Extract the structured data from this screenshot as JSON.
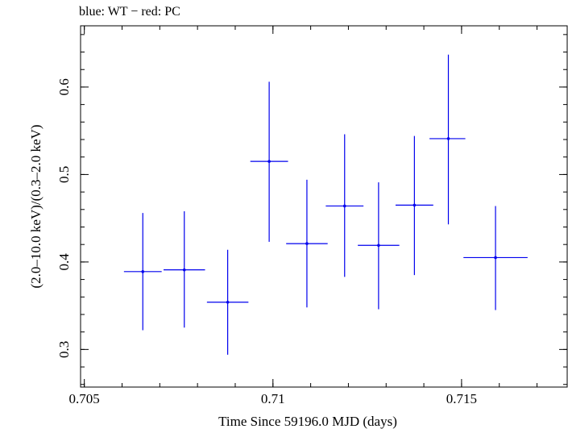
{
  "chart_data": {
    "type": "scatter",
    "title": "blue: WT − red: PC",
    "xlabel": "Time Since 59196.0 MJD (days)",
    "ylabel": "(2.0–10.0 keV)/(0.3–2.0 keV)",
    "xlim": [
      0.7049,
      0.7178
    ],
    "ylim": [
      0.257,
      0.67
    ],
    "x_ticks": [
      {
        "value": 0.705,
        "label": "0.705"
      },
      {
        "value": 0.71,
        "label": "0.71"
      },
      {
        "value": 0.715,
        "label": "0.715"
      }
    ],
    "y_ticks": [
      {
        "value": 0.3,
        "label": "0.3"
      },
      {
        "value": 0.4,
        "label": "0.4"
      },
      {
        "value": 0.5,
        "label": "0.5"
      },
      {
        "value": 0.6,
        "label": "0.6"
      }
    ],
    "x_minor_step": 0.001,
    "y_minor_step": 0.02,
    "grid": false,
    "series": [
      {
        "color": "#0000ee",
        "points": [
          {
            "x": 0.70655,
            "y": 0.389,
            "xlo": 0.70605,
            "xhi": 0.70705,
            "ylo": 0.322,
            "yhi": 0.456
          },
          {
            "x": 0.70765,
            "y": 0.391,
            "xlo": 0.7071,
            "xhi": 0.7082,
            "ylo": 0.325,
            "yhi": 0.458
          },
          {
            "x": 0.7088,
            "y": 0.354,
            "xlo": 0.70825,
            "xhi": 0.70935,
            "ylo": 0.294,
            "yhi": 0.414
          },
          {
            "x": 0.7099,
            "y": 0.515,
            "xlo": 0.7094,
            "xhi": 0.7104,
            "ylo": 0.423,
            "yhi": 0.606
          },
          {
            "x": 0.7109,
            "y": 0.421,
            "xlo": 0.71035,
            "xhi": 0.71145,
            "ylo": 0.348,
            "yhi": 0.494
          },
          {
            "x": 0.7119,
            "y": 0.464,
            "xlo": 0.7114,
            "xhi": 0.7124,
            "ylo": 0.383,
            "yhi": 0.546
          },
          {
            "x": 0.7128,
            "y": 0.419,
            "xlo": 0.71225,
            "xhi": 0.71335,
            "ylo": 0.346,
            "yhi": 0.491
          },
          {
            "x": 0.71375,
            "y": 0.465,
            "xlo": 0.71325,
            "xhi": 0.71425,
            "ylo": 0.385,
            "yhi": 0.544
          },
          {
            "x": 0.71465,
            "y": 0.541,
            "xlo": 0.71415,
            "xhi": 0.7151,
            "ylo": 0.443,
            "yhi": 0.637
          },
          {
            "x": 0.7159,
            "y": 0.405,
            "xlo": 0.71505,
            "xhi": 0.71675,
            "ylo": 0.345,
            "yhi": 0.464
          }
        ]
      }
    ]
  }
}
